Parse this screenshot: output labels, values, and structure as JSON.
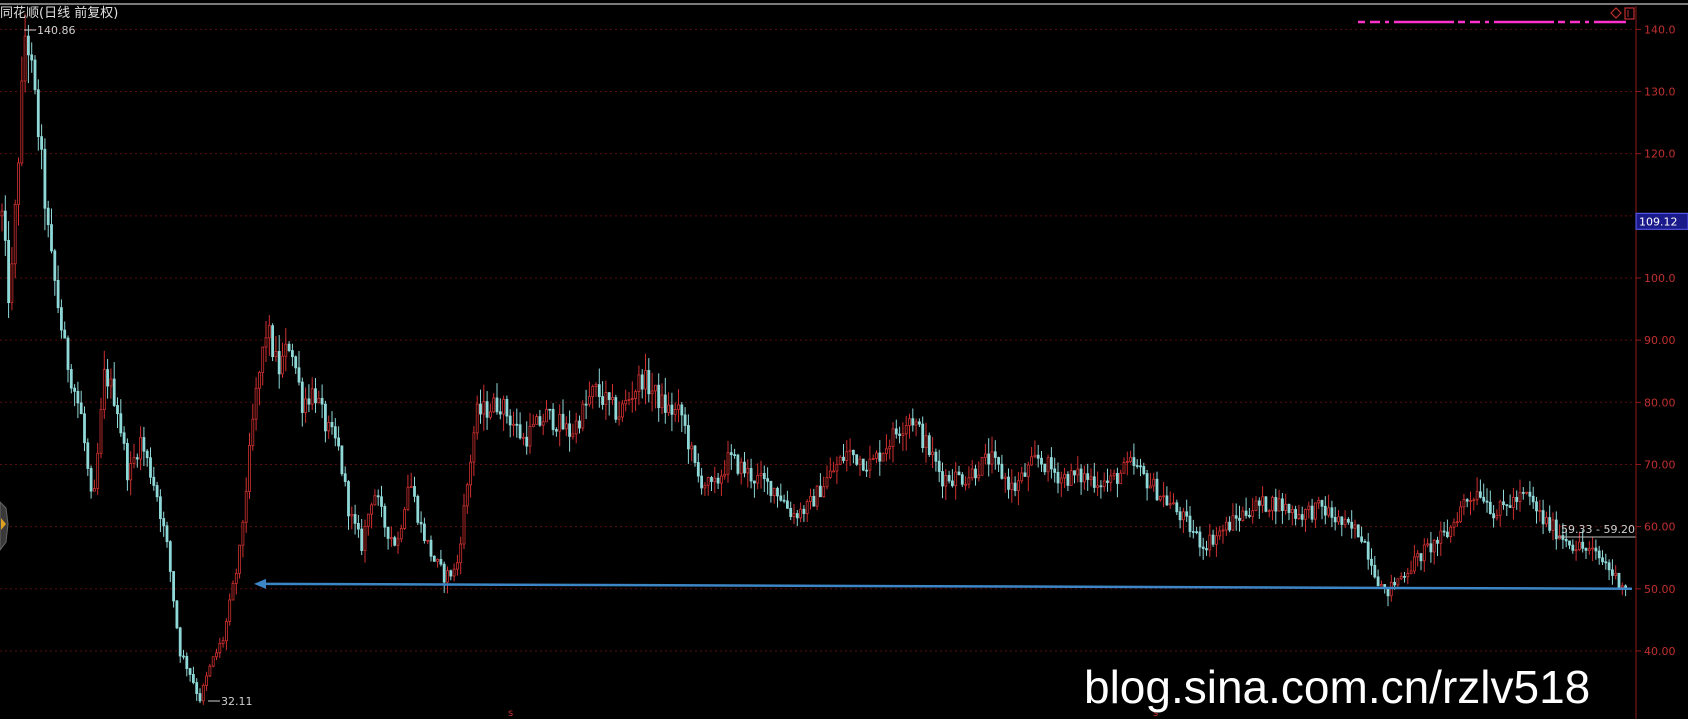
{
  "chart_data": {
    "type": "candlestick",
    "title": "同花顺(日线 前复权)",
    "ylim": [
      30,
      143
    ],
    "yticks": [
      {
        "value": 140,
        "label": "140.0"
      },
      {
        "value": 130,
        "label": "130.0"
      },
      {
        "value": 120,
        "label": "120.0"
      },
      {
        "value": 100,
        "label": "100.0"
      },
      {
        "value": 90,
        "label": "90.00"
      },
      {
        "value": 80,
        "label": "80.00"
      },
      {
        "value": 70,
        "label": "70.00"
      },
      {
        "value": 60,
        "label": "60.00"
      },
      {
        "value": 50,
        "label": "50.00"
      },
      {
        "value": 40,
        "label": "40.00"
      }
    ],
    "gridlines": [
      140,
      130,
      120,
      110,
      100,
      90,
      80,
      70,
      60,
      50,
      40
    ],
    "current_price": {
      "value": 109.12,
      "label": "109.12"
    },
    "max_marker": {
      "value": 140.86,
      "label": "140.86"
    },
    "min_marker": {
      "value": 32.11,
      "label": "32.11"
    },
    "range_annotation": {
      "value": 59.3,
      "label": "59.33 - 59.20"
    },
    "support_line": {
      "from": 50.8,
      "to": 50.0
    },
    "path": [
      [
        0.0,
        110
      ],
      [
        0.02,
        95
      ],
      [
        0.06,
        140.86
      ],
      [
        0.09,
        125
      ],
      [
        0.12,
        105
      ],
      [
        0.16,
        88
      ],
      [
        0.2,
        78
      ],
      [
        0.23,
        62
      ],
      [
        0.26,
        85
      ],
      [
        0.29,
        80
      ],
      [
        0.32,
        68
      ],
      [
        0.35,
        74
      ],
      [
        0.39,
        66
      ],
      [
        0.42,
        56
      ],
      [
        0.45,
        40
      ],
      [
        0.48,
        36
      ],
      [
        0.5,
        32.11
      ],
      [
        0.53,
        38
      ],
      [
        0.56,
        42
      ],
      [
        0.6,
        55
      ],
      [
        0.64,
        80
      ],
      [
        0.67,
        92
      ],
      [
        0.7,
        85
      ],
      [
        0.73,
        90
      ],
      [
        0.76,
        80
      ],
      [
        0.79,
        82
      ],
      [
        0.82,
        76
      ],
      [
        0.85,
        73
      ],
      [
        0.88,
        62
      ],
      [
        0.91,
        57
      ],
      [
        0.94,
        66
      ],
      [
        0.97,
        60
      ],
      [
        1.0,
        57
      ],
      [
        1.03,
        68
      ],
      [
        1.06,
        60
      ],
      [
        1.09,
        55
      ],
      [
        1.12,
        52
      ],
      [
        1.15,
        53
      ],
      [
        1.2,
        78
      ],
      [
        1.26,
        80
      ],
      [
        1.32,
        74
      ],
      [
        1.38,
        78
      ],
      [
        1.44,
        75
      ],
      [
        1.5,
        82
      ],
      [
        1.56,
        78
      ],
      [
        1.62,
        84
      ],
      [
        1.68,
        79
      ],
      [
        1.72,
        78
      ],
      [
        1.76,
        68
      ],
      [
        1.8,
        66
      ],
      [
        1.84,
        71
      ],
      [
        1.9,
        68
      ],
      [
        1.96,
        66
      ],
      [
        2.0,
        62
      ],
      [
        2.04,
        63
      ],
      [
        2.08,
        67
      ],
      [
        2.14,
        72
      ],
      [
        2.2,
        70
      ],
      [
        2.26,
        75
      ],
      [
        2.3,
        78
      ],
      [
        2.34,
        73
      ],
      [
        2.38,
        68
      ],
      [
        2.44,
        68
      ],
      [
        2.5,
        71
      ],
      [
        2.56,
        66
      ],
      [
        2.62,
        71
      ],
      [
        2.68,
        68
      ],
      [
        2.74,
        68
      ],
      [
        2.8,
        67
      ],
      [
        2.86,
        70
      ],
      [
        2.92,
        66
      ],
      [
        2.98,
        62
      ],
      [
        3.04,
        57
      ],
      [
        3.1,
        60
      ],
      [
        3.16,
        63
      ],
      [
        3.22,
        64
      ],
      [
        3.28,
        62
      ],
      [
        3.34,
        63
      ],
      [
        3.4,
        60
      ],
      [
        3.44,
        59
      ],
      [
        3.48,
        52
      ],
      [
        3.5,
        49
      ],
      [
        3.54,
        52
      ],
      [
        3.6,
        56
      ],
      [
        3.66,
        59
      ],
      [
        3.7,
        64
      ],
      [
        3.74,
        66
      ],
      [
        3.78,
        62
      ],
      [
        3.82,
        64
      ],
      [
        3.86,
        65
      ],
      [
        3.9,
        61
      ],
      [
        3.94,
        59
      ],
      [
        3.98,
        57
      ],
      [
        4.02,
        56
      ],
      [
        4.06,
        54
      ],
      [
        4.08,
        52
      ],
      [
        4.11,
        50.5
      ]
    ]
  },
  "watermark": "blog.sina.com.cn/rzlv518",
  "colors": {
    "background": "#000000",
    "up": "#d03030",
    "down": "#8fd8d8",
    "axis": "#8b1a1a",
    "grid": "#5a0d0d",
    "support_line": "#3d86c6",
    "price_tag_bg": "#1a1a8a",
    "price_tag_border": "#6060ff",
    "magenta": "#ff33cc"
  }
}
